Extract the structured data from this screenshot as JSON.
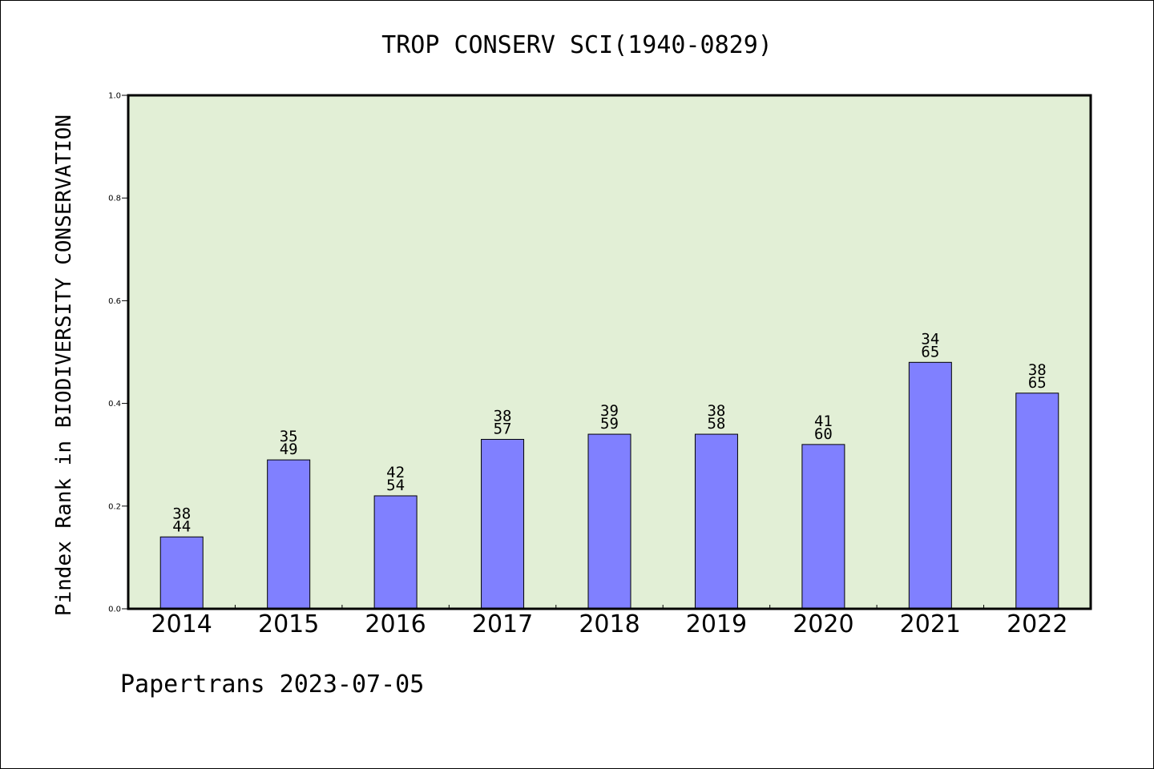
{
  "chart_data": {
    "type": "bar",
    "title": "TROP CONSERV SCI(1940-0829)",
    "ylabel": "Pindex Rank in BIODIVERSITY CONSERVATION",
    "xlabel": "",
    "ylim": [
      0,
      1
    ],
    "yticks": [
      "0.0",
      "0.2",
      "0.4",
      "0.6",
      "0.8",
      "1.0"
    ],
    "categories": [
      "2014",
      "2015",
      "2016",
      "2017",
      "2018",
      "2019",
      "2020",
      "2021",
      "2022"
    ],
    "values": [
      0.14,
      0.29,
      0.22,
      0.33,
      0.34,
      0.34,
      0.32,
      0.48,
      0.42
    ],
    "label_top": [
      "38",
      "35",
      "42",
      "38",
      "39",
      "38",
      "41",
      "34",
      "38"
    ],
    "label_bottom": [
      "44",
      "49",
      "54",
      "57",
      "59",
      "58",
      "60",
      "65",
      "65"
    ],
    "grid": false,
    "colors": {
      "plot_background": "#e2efd6",
      "bar_fill": "#8080ff",
      "bar_stroke": "#000000"
    }
  },
  "footer": "Papertrans 2023-07-05"
}
